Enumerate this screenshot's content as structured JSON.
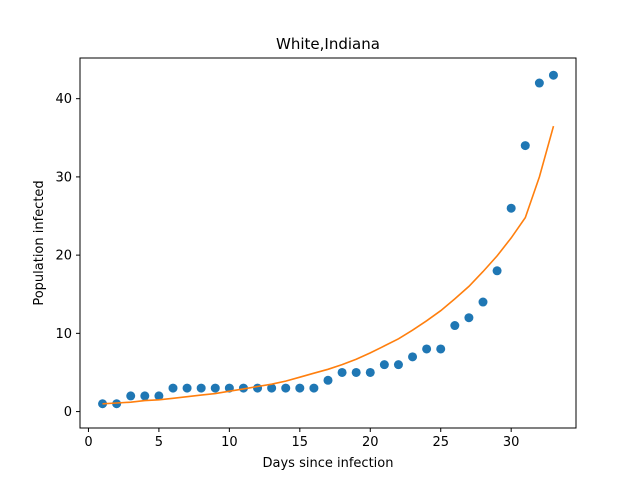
{
  "chart_data": {
    "type": "scatter",
    "title": "White,Indiana",
    "xlabel": "Days since infection",
    "ylabel": "Population infected",
    "xlim": [
      -0.6,
      34.6
    ],
    "ylim": [
      -2.1,
      45.2
    ],
    "xticks": [
      0,
      5,
      10,
      15,
      20,
      25,
      30
    ],
    "yticks": [
      0,
      10,
      20,
      30,
      40
    ],
    "grid": false,
    "series": [
      {
        "kind": "scatter",
        "color": "#1f77b4",
        "x": [
          1,
          2,
          3,
          4,
          5,
          6,
          7,
          8,
          9,
          10,
          11,
          12,
          13,
          14,
          15,
          16,
          17,
          18,
          19,
          20,
          21,
          22,
          23,
          24,
          25,
          26,
          27,
          28,
          29,
          30,
          31,
          32,
          33
        ],
        "y": [
          1,
          1,
          2,
          2,
          2,
          3,
          3,
          3,
          3,
          3,
          3,
          3,
          3,
          3,
          3,
          3,
          4,
          5,
          5,
          5,
          6,
          6,
          7,
          8,
          8,
          11,
          12,
          14,
          18,
          26,
          34,
          42,
          43
        ]
      },
      {
        "kind": "line",
        "color": "#ff7f0e",
        "x": [
          1,
          2,
          3,
          4,
          5,
          6,
          7,
          8,
          9,
          10,
          11,
          12,
          13,
          14,
          15,
          16,
          17,
          18,
          19,
          20,
          21,
          22,
          23,
          24,
          25,
          26,
          27,
          28,
          29,
          30,
          31,
          32,
          33
        ],
        "y": [
          1.0,
          1.1,
          1.2,
          1.4,
          1.5,
          1.7,
          1.9,
          2.1,
          2.3,
          2.6,
          2.9,
          3.2,
          3.5,
          3.9,
          4.4,
          4.9,
          5.4,
          6.0,
          6.7,
          7.5,
          8.4,
          9.3,
          10.4,
          11.6,
          12.9,
          14.4,
          16.0,
          17.9,
          19.9,
          22.2,
          24.8,
          30.0,
          36.5
        ]
      }
    ]
  }
}
